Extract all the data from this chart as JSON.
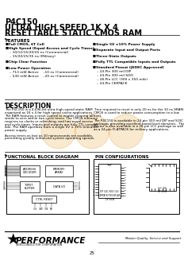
{
  "title_line1": "P4C150",
  "title_line2": "ULTRA HIGH SPEED 1K X 4",
  "title_line3": "RESETTABLE STATIC CMOS RAM",
  "features_title": "FEATURES",
  "features_left": [
    "Full CMOS, 6T Cell",
    "High Speed (Equal Access and Cycle Times)",
    "  – 10/12/15/20/25 ns (Commercial)",
    "  – 15/20/25/35 ns (Military)",
    "",
    "Chip Clear Function",
    "",
    "Low Power Operation",
    "  – 713 mW Active    –10 ns (Commercial)",
    "  – 530 mW Active    –20 ns (Commercial)"
  ],
  "features_right": [
    "Single 5V ±10% Power Supply",
    "",
    "Separate Input and Output Ports",
    "",
    "Three-State Outputs",
    "",
    "Fully TTL Compatible Inputs and Outputs",
    "",
    "Standard Pinout (JEDEC Approved)",
    "  – 24-Pin 300 mil DIP",
    "  – 24-Pin 300 mil SOIC",
    "  – 28-Pin LCC (300 x 350 mils)",
    "  – 24-Pin CERPACK"
  ],
  "description_title": "DESCRIPTION",
  "desc_left": [
    "The P4C150 is a 4,096-bit ultra-high-speed static RAM",
    "organized as 1K x 4 for high speed cache applications.",
    "The RAM features a reset control to enable clearing all",
    "words to zero within two cycle times. The CMOS memory",
    "requires no clocks or refreshing, and has equal access",
    "and cycle times. Inputs and outputs are fully TTL-compat-",
    "ible. The RAM operates from a single 5V ± 10% tolerance",
    "power supply.",
    "",
    "Access times as fast as 10 nanoseconds are available,",
    "permitting greatly enhanced system operating speeds."
  ],
  "desc_right": [
    "Time required to reset is only 20 ns for the 10 ns SRAM.",
    "CMOS is used to reduce power consumption to a low",
    "level.",
    "",
    "The P4C150 is available in 24-pin 300 mil DIP and SOIC",
    "packages providing excellent board level densities.  The",
    "device is also available in a 28-pin LCC package as well",
    "as a 24-pin FLATPACK for military applications."
  ],
  "functional_title": "FUNCTIONAL BLOCK DIAGRAM",
  "pin_config_title": "PIN CONFIGURATIONS",
  "company_name": "PERFORMANCE",
  "company_sub": "SEMICONDUCTOR CORPORATION",
  "company_motto": "Master Quality, Service and Support",
  "page_num": "25",
  "background_color": "#ffffff",
  "text_color": "#000000"
}
